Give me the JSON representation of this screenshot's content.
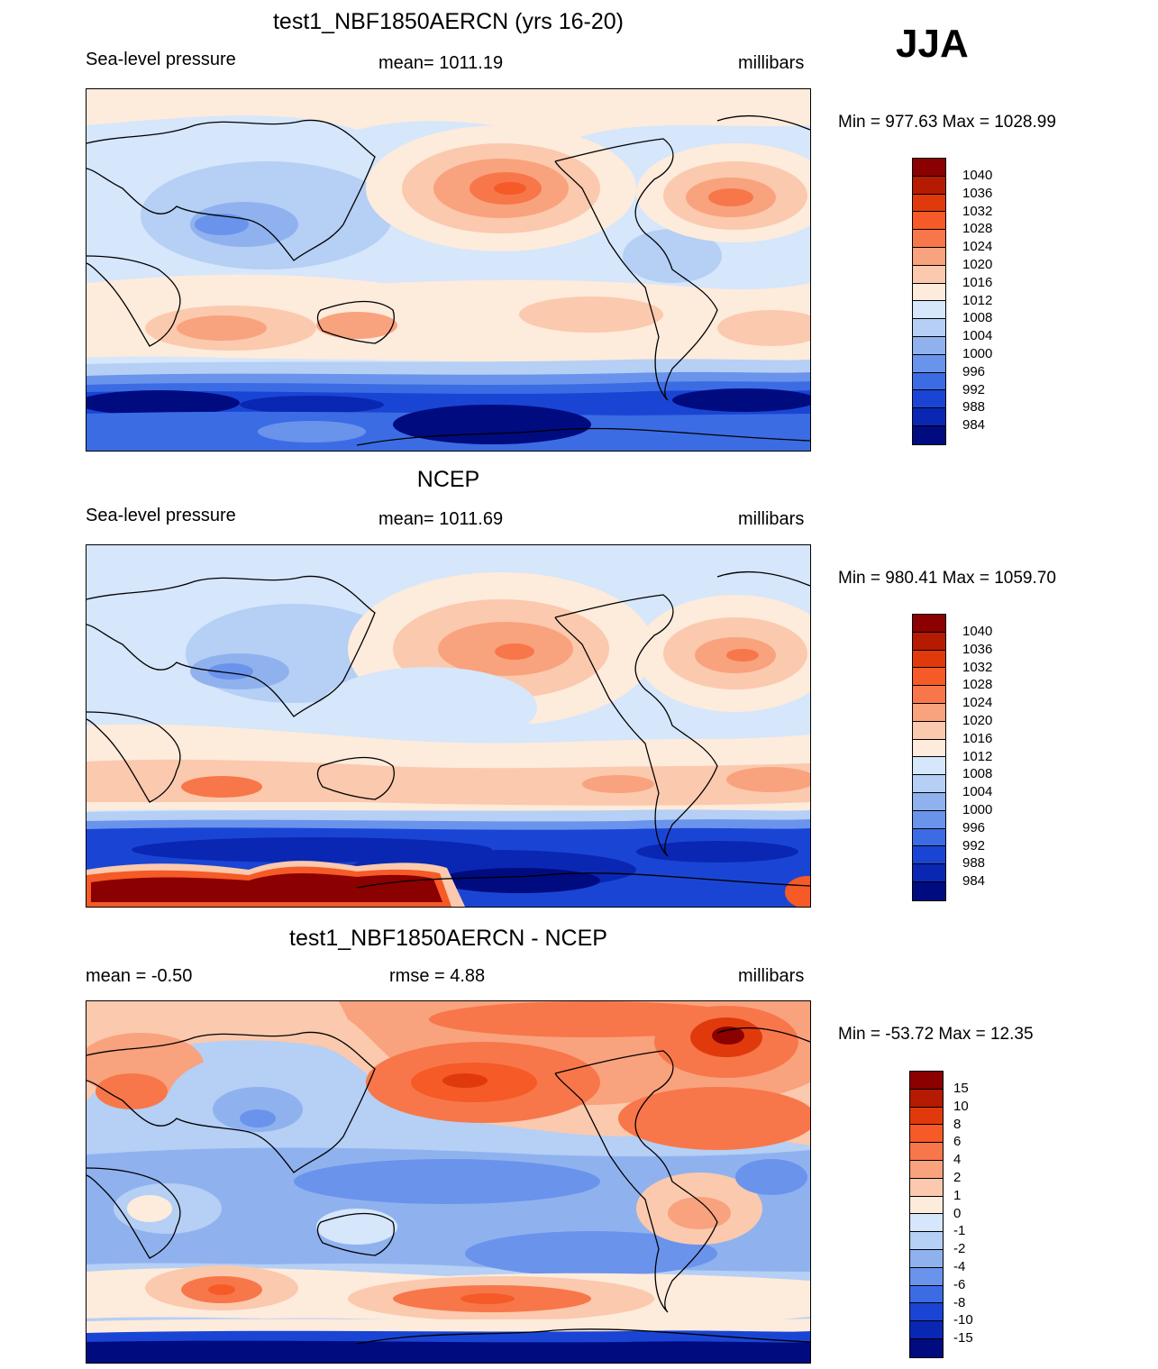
{
  "season": "JJA",
  "panels": [
    {
      "title": "test1_NBF1850AERCN (yrs 16-20)",
      "left_label": "Sea-level pressure",
      "center_label": "mean= 1011.19",
      "right_label": "millibars",
      "minmax": "Min = 977.63 Max = 1028.99",
      "colorbar_labels": [
        "1040",
        "1036",
        "1032",
        "1028",
        "1024",
        "1020",
        "1016",
        "1012",
        "1008",
        "1004",
        "1000",
        "996",
        "992",
        "988",
        "984"
      ]
    },
    {
      "title": "NCEP",
      "left_label": "Sea-level pressure",
      "center_label": "mean= 1011.69",
      "right_label": "millibars",
      "minmax": "Min = 980.41 Max = 1059.70",
      "colorbar_labels": [
        "1040",
        "1036",
        "1032",
        "1028",
        "1024",
        "1020",
        "1016",
        "1012",
        "1008",
        "1004",
        "1000",
        "996",
        "992",
        "988",
        "984"
      ]
    },
    {
      "title": "test1_NBF1850AERCN - NCEP",
      "left_label": "mean =  -0.50",
      "center_label": "rmse =   4.88",
      "right_label": "millibars",
      "minmax": "Min = -53.72 Max =  12.35",
      "colorbar_labels": [
        "15",
        "10",
        "8",
        "6",
        "4",
        "2",
        "1",
        "0",
        "-1",
        "-2",
        "-4",
        "-6",
        "-8",
        "-10",
        "-15"
      ]
    }
  ],
  "colorbar_colors": [
    "#8b0000",
    "#b51b00",
    "#e03a0c",
    "#f55a27",
    "#f7774a",
    "#f9a27e",
    "#fbc9ad",
    "#fdebdc",
    "#d6e6fb",
    "#b5cff5",
    "#8fb2ef",
    "#6a93ec",
    "#3c6ce4",
    "#1a45d4",
    "#0a27b3",
    "#000b80"
  ]
}
